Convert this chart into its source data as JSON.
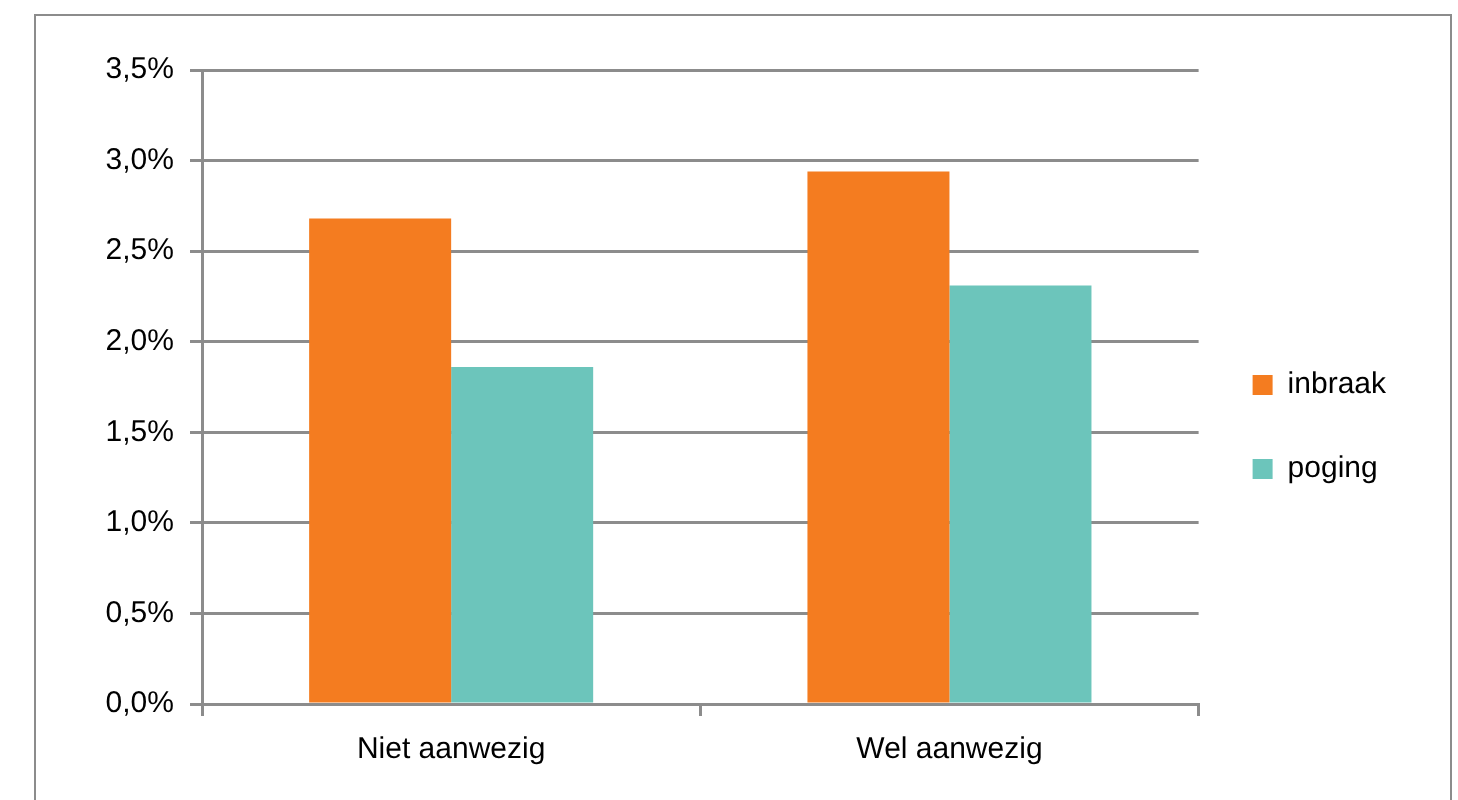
{
  "chart_data": {
    "type": "bar",
    "categories": [
      "Niet aanwezig",
      "Wel aanwezig"
    ],
    "series": [
      {
        "name": "inbraak",
        "color": "#f47c20",
        "values": [
          2.68,
          2.94
        ]
      },
      {
        "name": "poging",
        "color": "#6cc5bb",
        "values": [
          1.86,
          2.31
        ]
      }
    ],
    "ylim": [
      0,
      3.5
    ],
    "yticks": [
      {
        "value": 0,
        "label": "0,0%"
      },
      {
        "value": 0.5,
        "label": "0,5%"
      },
      {
        "value": 1,
        "label": "1,0%"
      },
      {
        "value": 1.5,
        "label": "1,5%"
      },
      {
        "value": 2,
        "label": "2,0%"
      },
      {
        "value": 2.5,
        "label": "2,5%"
      },
      {
        "value": 3,
        "label": "3,0%"
      },
      {
        "value": 3.5,
        "label": "3,5%"
      }
    ],
    "grid": "y",
    "legend": "right"
  }
}
